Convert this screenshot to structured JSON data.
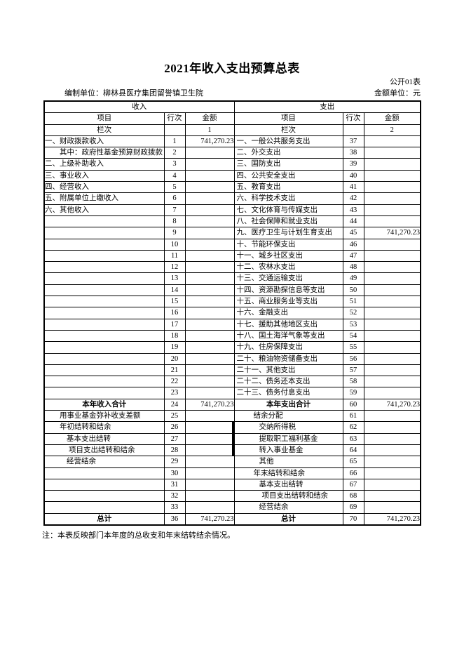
{
  "header": {
    "title": "2021年收入支出预算总表",
    "form_code": "公开01表",
    "prepared_by": "编制单位：柳林县医疗集团留誉镇卫生院",
    "unit_label": "金额单位：元"
  },
  "table": {
    "income_header": "收入",
    "expense_header": "支出",
    "col_headers": {
      "item": "项目",
      "row_no": "行次",
      "amount": "金额"
    },
    "column_index_label": "栏次",
    "column_index_income": "1",
    "column_index_expense": "2",
    "rows": [
      {
        "li": "一、财政拨款收入",
        "lr": "1",
        "la": "741,270.23",
        "ri": "一、一般公共服务支出",
        "rr": "37",
        "ra": ""
      },
      {
        "li": "其中：政府性基金预算财政拨款",
        "lind": 1,
        "lr": "2",
        "la": "",
        "ri": "二、外交支出",
        "rr": "38",
        "ra": ""
      },
      {
        "li": "二、上级补助收入",
        "lr": "3",
        "la": "",
        "ri": "三、国防支出",
        "rr": "39",
        "ra": ""
      },
      {
        "li": "三、事业收入",
        "lr": "4",
        "la": "",
        "ri": "四、公共安全支出",
        "rr": "40",
        "ra": ""
      },
      {
        "li": "四、经营收入",
        "lr": "5",
        "la": "",
        "ri": "五、教育支出",
        "rr": "41",
        "ra": ""
      },
      {
        "li": "五、附属单位上缴收入",
        "lr": "6",
        "la": "",
        "ri": "六、科学技术支出",
        "rr": "42",
        "ra": ""
      },
      {
        "li": "六、其他收入",
        "lr": "7",
        "la": "",
        "ri": "七、文化体育与传媒支出",
        "rr": "43",
        "ra": ""
      },
      {
        "li": "",
        "lr": "8",
        "la": "",
        "ri": "八、社会保障和就业支出",
        "rr": "44",
        "ra": ""
      },
      {
        "li": "",
        "lr": "9",
        "la": "",
        "ri": "九、医疗卫生与计划生育支出",
        "rr": "45",
        "ra": "741,270.23"
      },
      {
        "li": "",
        "lr": "10",
        "la": "",
        "ri": "十、节能环保支出",
        "rr": "46",
        "ra": ""
      },
      {
        "li": "",
        "lr": "11",
        "la": "",
        "ri": "十一、城乡社区支出",
        "rr": "47",
        "ra": ""
      },
      {
        "li": "",
        "lr": "12",
        "la": "",
        "ri": "十二、农林水支出",
        "rr": "48",
        "ra": ""
      },
      {
        "li": "",
        "lr": "13",
        "la": "",
        "ri": "十三、交通运输支出",
        "rr": "49",
        "ra": ""
      },
      {
        "li": "",
        "lr": "14",
        "la": "",
        "ri": "十四、资源勘探信息等支出",
        "rr": "50",
        "ra": ""
      },
      {
        "li": "",
        "lr": "15",
        "la": "",
        "ri": "十五、商业服务业等支出",
        "rr": "51",
        "ra": ""
      },
      {
        "li": "",
        "lr": "16",
        "la": "",
        "ri": "十六、金融支出",
        "rr": "52",
        "ra": ""
      },
      {
        "li": "",
        "lr": "17",
        "la": "",
        "ri": "十七、援助其他地区支出",
        "rr": "53",
        "ra": ""
      },
      {
        "li": "",
        "lr": "18",
        "la": "",
        "ri": "十八、国土海洋气象等支出",
        "rr": "54",
        "ra": ""
      },
      {
        "li": "",
        "lr": "19",
        "la": "",
        "ri": "十九、住房保障支出",
        "rr": "55",
        "ra": ""
      },
      {
        "li": "",
        "lr": "20",
        "la": "",
        "ri": "二十、粮油物资储备支出",
        "rr": "56",
        "ra": ""
      },
      {
        "li": "",
        "lr": "21",
        "la": "",
        "ri": "二十一、其他支出",
        "rr": "57",
        "ra": ""
      },
      {
        "li": "",
        "lr": "22",
        "la": "",
        "ri": "二十二、债务还本支出",
        "rr": "58",
        "ra": ""
      },
      {
        "li": "",
        "lr": "23",
        "la": "",
        "ri": "二十三、债务付息支出",
        "rr": "59",
        "ra": ""
      },
      {
        "li": "本年收入合计",
        "lstyle": "total",
        "lr": "24",
        "la": "741,270.23",
        "ri": "本年支出合计",
        "rstyle": "total",
        "rr": "60",
        "ra": "741,270.23"
      },
      {
        "li": "用事业基金弥补收支差额",
        "lind": 1,
        "lr": "25",
        "la": "",
        "ri": "结余分配",
        "rind": 1,
        "rr": "61",
        "ra": ""
      },
      {
        "li": "年初结转和结余",
        "lind": 1,
        "lr": "26",
        "la": "",
        "ri": "交纳所得税",
        "rind": 2,
        "rr": "62",
        "ra": ""
      },
      {
        "li": "基本支出结转",
        "lind": 2,
        "lr": "27",
        "la": "",
        "ri": "提取职工福利基金",
        "rind": 2,
        "rr": "63",
        "ra": ""
      },
      {
        "li": "项目支出结转和结余",
        "lind": 3,
        "lr": "28",
        "la": "",
        "ri": "转入事业基金",
        "rind": 2,
        "rr": "64",
        "ra": ""
      },
      {
        "li": "经营结余",
        "lind": 2,
        "lr": "29",
        "la": "",
        "ri": "其他",
        "rind": 2,
        "rr": "65",
        "ra": ""
      },
      {
        "li": "",
        "lr": "30",
        "la": "",
        "ri": "年末结转和结余",
        "rind": 1,
        "rr": "66",
        "ra": ""
      },
      {
        "li": "",
        "lr": "31",
        "la": "",
        "ri": "基本支出结转",
        "rind": 2,
        "rr": "67",
        "ra": ""
      },
      {
        "li": "",
        "lr": "32",
        "la": "",
        "ri": "项目支出结转和结余",
        "rind": 3,
        "rr": "68",
        "ra": ""
      },
      {
        "li": "",
        "lr": "33",
        "la": "",
        "ri": "经营结余",
        "rind": 2,
        "rr": "69",
        "ra": ""
      },
      {
        "li": "总计",
        "lstyle": "total",
        "lr": "36",
        "la": "741,270.23",
        "ri": "总计",
        "rstyle": "total",
        "rr": "70",
        "ra": "741,270.23"
      }
    ]
  },
  "footer": {
    "note": "注：本表反映部门本年度的总收支和年末结转结余情况。"
  }
}
